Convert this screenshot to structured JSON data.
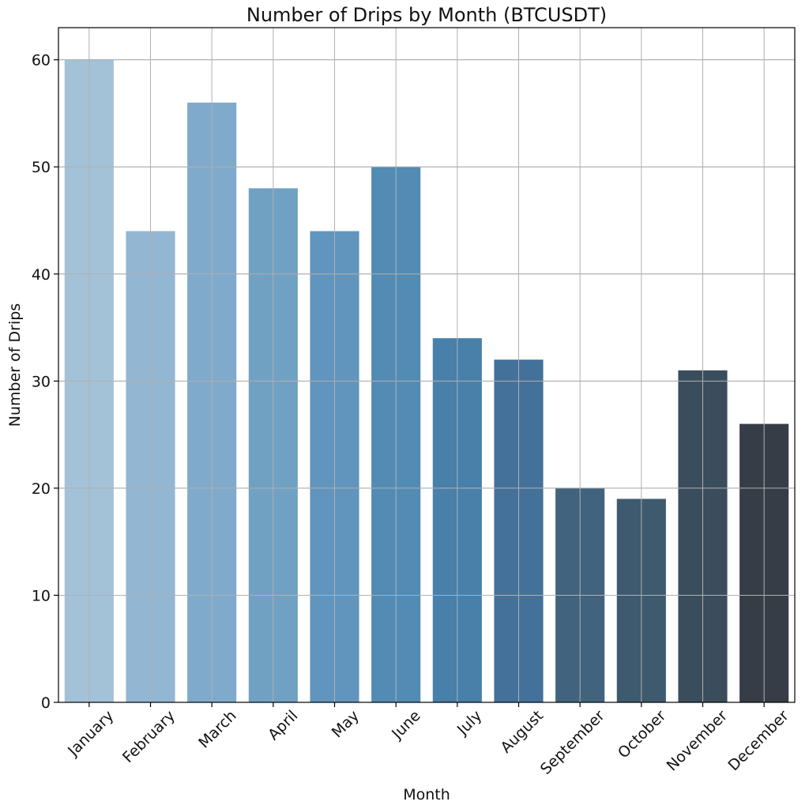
{
  "chart_data": {
    "type": "bar",
    "title": "Number of Drips by Month (BTCUSDT)",
    "xlabel": "Month",
    "ylabel": "Number of Drips",
    "categories": [
      "January",
      "February",
      "March",
      "April",
      "May",
      "June",
      "July",
      "August",
      "September",
      "October",
      "November",
      "December"
    ],
    "values": [
      60,
      44,
      56,
      48,
      44,
      50,
      34,
      32,
      20,
      19,
      31,
      26
    ],
    "ylim": [
      0,
      63
    ],
    "yticks": [
      0,
      10,
      20,
      30,
      40,
      50,
      60
    ],
    "grid": true,
    "legend": "none",
    "colors": [
      "#a3c2d8",
      "#93b6d2",
      "#80aacb",
      "#70a1c3",
      "#6195bd",
      "#528bb4",
      "#4880a9",
      "#44719a",
      "#41637e",
      "#3e5a6e",
      "#3a4d5d",
      "#363d46"
    ]
  }
}
